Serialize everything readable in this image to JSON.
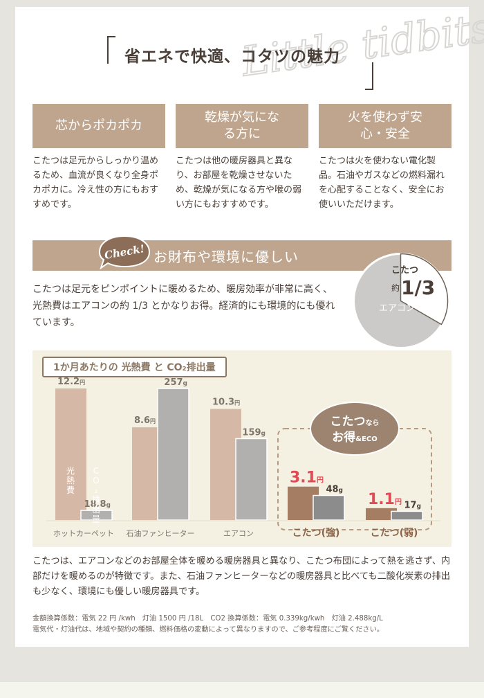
{
  "watermark": "Little tidbits",
  "heading": "省エネで快適、コタツの魅力",
  "features": [
    {
      "title": "芯からポカポカ",
      "text": "こたつは足元からしっかり温めるため、血流が良くなり全身ポカポカに。冷え性の方にもおすすめです。"
    },
    {
      "title": "乾燥が気になる方に",
      "text": "こたつは他の暖房器具と異なり、お部屋を乾燥させないため、乾燥が気になる方や喉の弱い方にもおすすめです。"
    },
    {
      "title": "火を使わず安心・安全",
      "text": "こたつは火を使わない電化製品。石油やガスなどの燃料漏れを心配することなく、安全にお使いいただけます。"
    }
  ],
  "check": {
    "badge": "Check!",
    "title": "お財布や環境に優しい",
    "text": "こたつは足元をピンポイントに暖めるため、暖房効率が非常に高く、光熱費はエアコンの約 1/3 とかなりお得。経済的にも環境的にも優れています。"
  },
  "pie": {
    "kotatsu": "こたつ",
    "approx": "約",
    "ratio": "1/3",
    "aircon": "エアコン",
    "fraction": 0.3333
  },
  "chart_data": {
    "type": "bar",
    "title": "1か月あたりの 光熱費 と CO₂排出量",
    "categories": [
      "ホットカーペット",
      "石油ファンヒーター",
      "エアコン",
      "こたつ(強)",
      "こたつ(弱)"
    ],
    "series": [
      {
        "name": "光熱費",
        "unit": "円",
        "values": [
          12.2,
          8.6,
          10.3,
          3.1,
          1.1
        ],
        "labels": [
          "12.2",
          "8.6",
          "10.3",
          "3.1",
          "1.1"
        ]
      },
      {
        "name": "CO₂排出量",
        "unit": "g",
        "values": [
          18.8,
          257,
          159,
          48,
          17
        ],
        "labels": [
          "18.8",
          "257",
          "159",
          "48",
          "17"
        ]
      }
    ],
    "in_bar_labels": {
      "cost": "光熱費",
      "co2": "CO₂排出量"
    },
    "callout": {
      "line1": "こたつ",
      "line1_suffix": "なら",
      "line2": "お得",
      "line2_suffix": "&ECO"
    },
    "colors": {
      "cost": "#d5b8a5",
      "co2": "#b1b0ae",
      "cost_highlight": "#a47d62",
      "co2_highlight": "#8c8c8c",
      "value_red": "#e04a55",
      "label": "#7d746c",
      "label_highlight": "#8c6548"
    }
  },
  "description": "こたつは、エアコンなどのお部屋全体を暖める暖房器具と異なり、こたつ布団によって熱を逃さず、内部だけを暖めるのが特徴です。また、石油ファンヒーターなどの暖房器具と比べても二酸化炭素の排出も少なく、環境にも優しい暖房器具です。",
  "footnote1": "金額換算係数：電気 22 円 /kwh　灯油 1500 円 /18L　CO2 換算係数：電気 0.339kg/kwh　灯油 2.488kg/L",
  "footnote2": "電気代・灯油代は、地域や契約の種類、燃料価格の変動によって異なりますので、ご参考程度にご覧ください。"
}
